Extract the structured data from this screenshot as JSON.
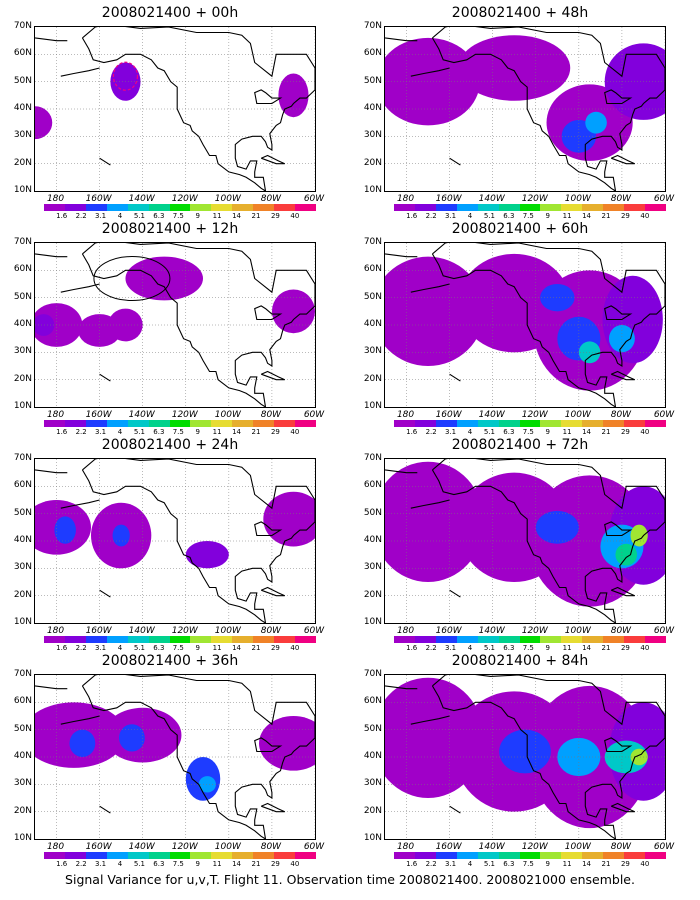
{
  "chart_data": [
    {
      "type": "heatmap",
      "title": "2008021400 + 00h",
      "lead_hours": 0
    },
    {
      "type": "heatmap",
      "title": "2008021400 + 48h",
      "lead_hours": 48
    },
    {
      "type": "heatmap",
      "title": "2008021400 + 12h",
      "lead_hours": 12
    },
    {
      "type": "heatmap",
      "title": "2008021400 + 60h",
      "lead_hours": 60
    },
    {
      "type": "heatmap",
      "title": "2008021400 + 24h",
      "lead_hours": 24
    },
    {
      "type": "heatmap",
      "title": "2008021400 + 72h",
      "lead_hours": 72
    },
    {
      "type": "heatmap",
      "title": "2008021400 + 36h",
      "lead_hours": 36
    },
    {
      "type": "heatmap",
      "title": "2008021400 + 84h",
      "lead_hours": 84
    }
  ],
  "axes": {
    "lat_ticks": [
      "70N",
      "60N",
      "50N",
      "40N",
      "30N",
      "20N",
      "10N"
    ],
    "lon_ticks": [
      "180",
      "160W",
      "140W",
      "120W",
      "100W",
      "80W",
      "60W"
    ],
    "lat_range": [
      10,
      70
    ],
    "lon_range": [
      -190,
      -60
    ],
    "grid": "dotted"
  },
  "colorbar": {
    "labels": [
      "1.6",
      "2.2",
      "3.1",
      "4",
      "5.1",
      "6.3",
      "7.5",
      "9",
      "11",
      "14",
      "21",
      "29",
      "40"
    ],
    "colors": [
      "#a000c8",
      "#8200dc",
      "#1e3cff",
      "#00a0ff",
      "#00c8c8",
      "#00d28c",
      "#00dc00",
      "#a0e632",
      "#e6dc32",
      "#e6af2d",
      "#f08228",
      "#fa3c3c",
      "#f00082"
    ]
  },
  "caption": "Signal Variance for u,v,T. Flight 11. Observation time 2008021400. 2008021000 ensemble."
}
